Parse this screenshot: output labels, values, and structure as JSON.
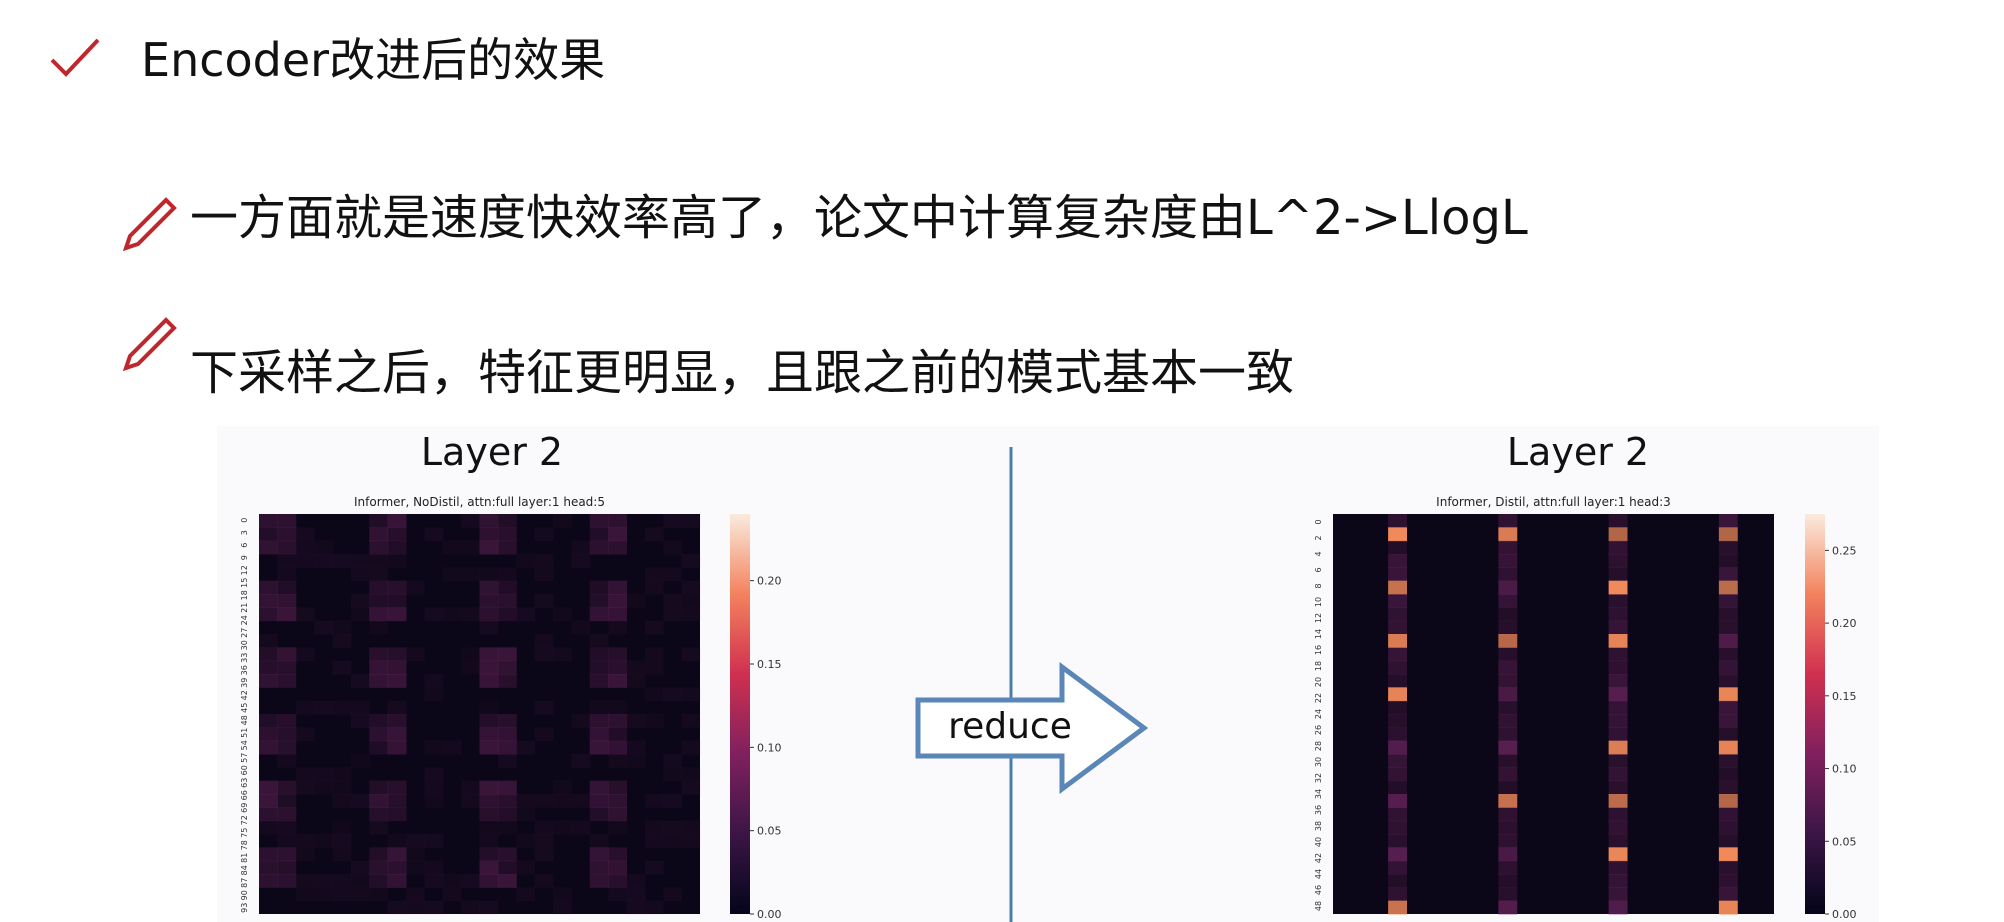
{
  "header": {
    "title": "Encoder改进后的效果"
  },
  "bullets": [
    "一方面就是速度快效率高了，论文中计算复杂度由L^2->LlogL",
    "下采样之后，特征更明显，且跟之前的模式基本一致"
  ],
  "arrow_label": "reduce",
  "panels": [
    {
      "title": "Layer 2",
      "subtitle": "Informer, NoDistil, attn:full layer:1 head:5",
      "yticks": [
        0,
        3,
        6,
        9,
        12,
        15,
        18,
        21,
        24,
        27,
        30,
        33,
        36,
        39,
        42,
        45,
        48,
        51,
        54,
        57,
        60,
        63,
        66,
        69,
        72,
        75,
        78,
        81,
        84,
        87,
        90,
        93
      ],
      "clim": [
        0,
        0.24
      ],
      "colorbar_ticks": [
        {
          "value": 0,
          "label": "0.00"
        },
        {
          "value": 0.05,
          "label": "0.05"
        },
        {
          "value": 0.1,
          "label": "0.10"
        },
        {
          "value": 0.15,
          "label": "0.15"
        },
        {
          "value": 0.2,
          "label": "0.20"
        }
      ]
    },
    {
      "title": "Layer 2",
      "subtitle": "Informer, Distil, attn:full layer:1 head:3",
      "yticks": [
        0,
        2,
        4,
        6,
        8,
        10,
        12,
        14,
        16,
        18,
        20,
        22,
        24,
        26,
        28,
        30,
        32,
        34,
        36,
        38,
        40,
        42,
        44,
        46,
        48
      ],
      "clim": [
        0,
        0.275
      ],
      "colorbar_ticks": [
        {
          "value": 0,
          "label": "0.00"
        },
        {
          "value": 0.05,
          "label": "0.05"
        },
        {
          "value": 0.1,
          "label": "0.10"
        },
        {
          "value": 0.15,
          "label": "0.15"
        },
        {
          "value": 0.2,
          "label": "0.20"
        },
        {
          "value": 0.25,
          "label": "0.25"
        }
      ]
    }
  ]
}
